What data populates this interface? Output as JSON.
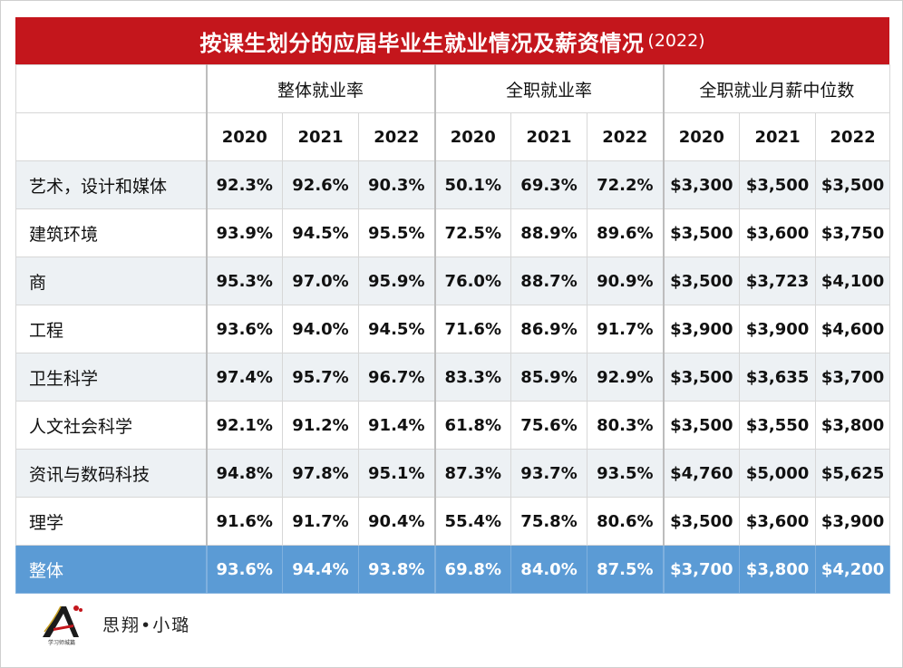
{
  "title": {
    "main": "按课生划分的应届毕业生就业情况及薪资情况",
    "year": "(2022)"
  },
  "groups": [
    "整体就业率",
    "全职就业率",
    "全职就业月薪中位数"
  ],
  "years": [
    "2020",
    "2021",
    "2022"
  ],
  "rows": [
    {
      "label": "艺术，设计和媒体",
      "values": [
        "92.3%",
        "92.6%",
        "90.3%",
        "50.1%",
        "69.3%",
        "72.2%",
        "$3,300",
        "$3,500",
        "$3,500"
      ]
    },
    {
      "label": "建筑环境",
      "values": [
        "93.9%",
        "94.5%",
        "95.5%",
        "72.5%",
        "88.9%",
        "89.6%",
        "$3,500",
        "$3,600",
        "$3,750"
      ]
    },
    {
      "label": "商",
      "values": [
        "95.3%",
        "97.0%",
        "95.9%",
        "76.0%",
        "88.7%",
        "90.9%",
        "$3,500",
        "$3,723",
        "$4,100"
      ]
    },
    {
      "label": "工程",
      "values": [
        "93.6%",
        "94.0%",
        "94.5%",
        "71.6%",
        "86.9%",
        "91.7%",
        "$3,900",
        "$3,900",
        "$4,600"
      ]
    },
    {
      "label": "卫生科学",
      "values": [
        "97.4%",
        "95.7%",
        "96.7%",
        "83.3%",
        "85.9%",
        "92.9%",
        "$3,500",
        "$3,635",
        "$3,700"
      ]
    },
    {
      "label": "人文社会科学",
      "values": [
        "92.1%",
        "91.2%",
        "91.4%",
        "61.8%",
        "75.6%",
        "80.3%",
        "$3,500",
        "$3,550",
        "$3,800"
      ]
    },
    {
      "label": "资讯与数码科技",
      "values": [
        "94.8%",
        "97.8%",
        "95.1%",
        "87.3%",
        "93.7%",
        "93.5%",
        "$4,760",
        "$5,000",
        "$5,625"
      ]
    },
    {
      "label": "理学",
      "values": [
        "91.6%",
        "91.7%",
        "90.4%",
        "55.4%",
        "75.8%",
        "80.6%",
        "$3,500",
        "$3,600",
        "$3,900"
      ]
    },
    {
      "label": "整体",
      "values": [
        "93.6%",
        "94.4%",
        "93.8%",
        "69.8%",
        "84.0%",
        "87.5%",
        "$3,700",
        "$3,800",
        "$4,200"
      ]
    }
  ],
  "footer": {
    "logo_icon": "academy-logo-icon",
    "logo_caption": "学习师城篇",
    "signature": "思翔•小璐"
  },
  "colors": {
    "title_bg": "#c4161c",
    "total_bg": "#5b9bd5",
    "alt_row_bg": "#edf1f4"
  }
}
